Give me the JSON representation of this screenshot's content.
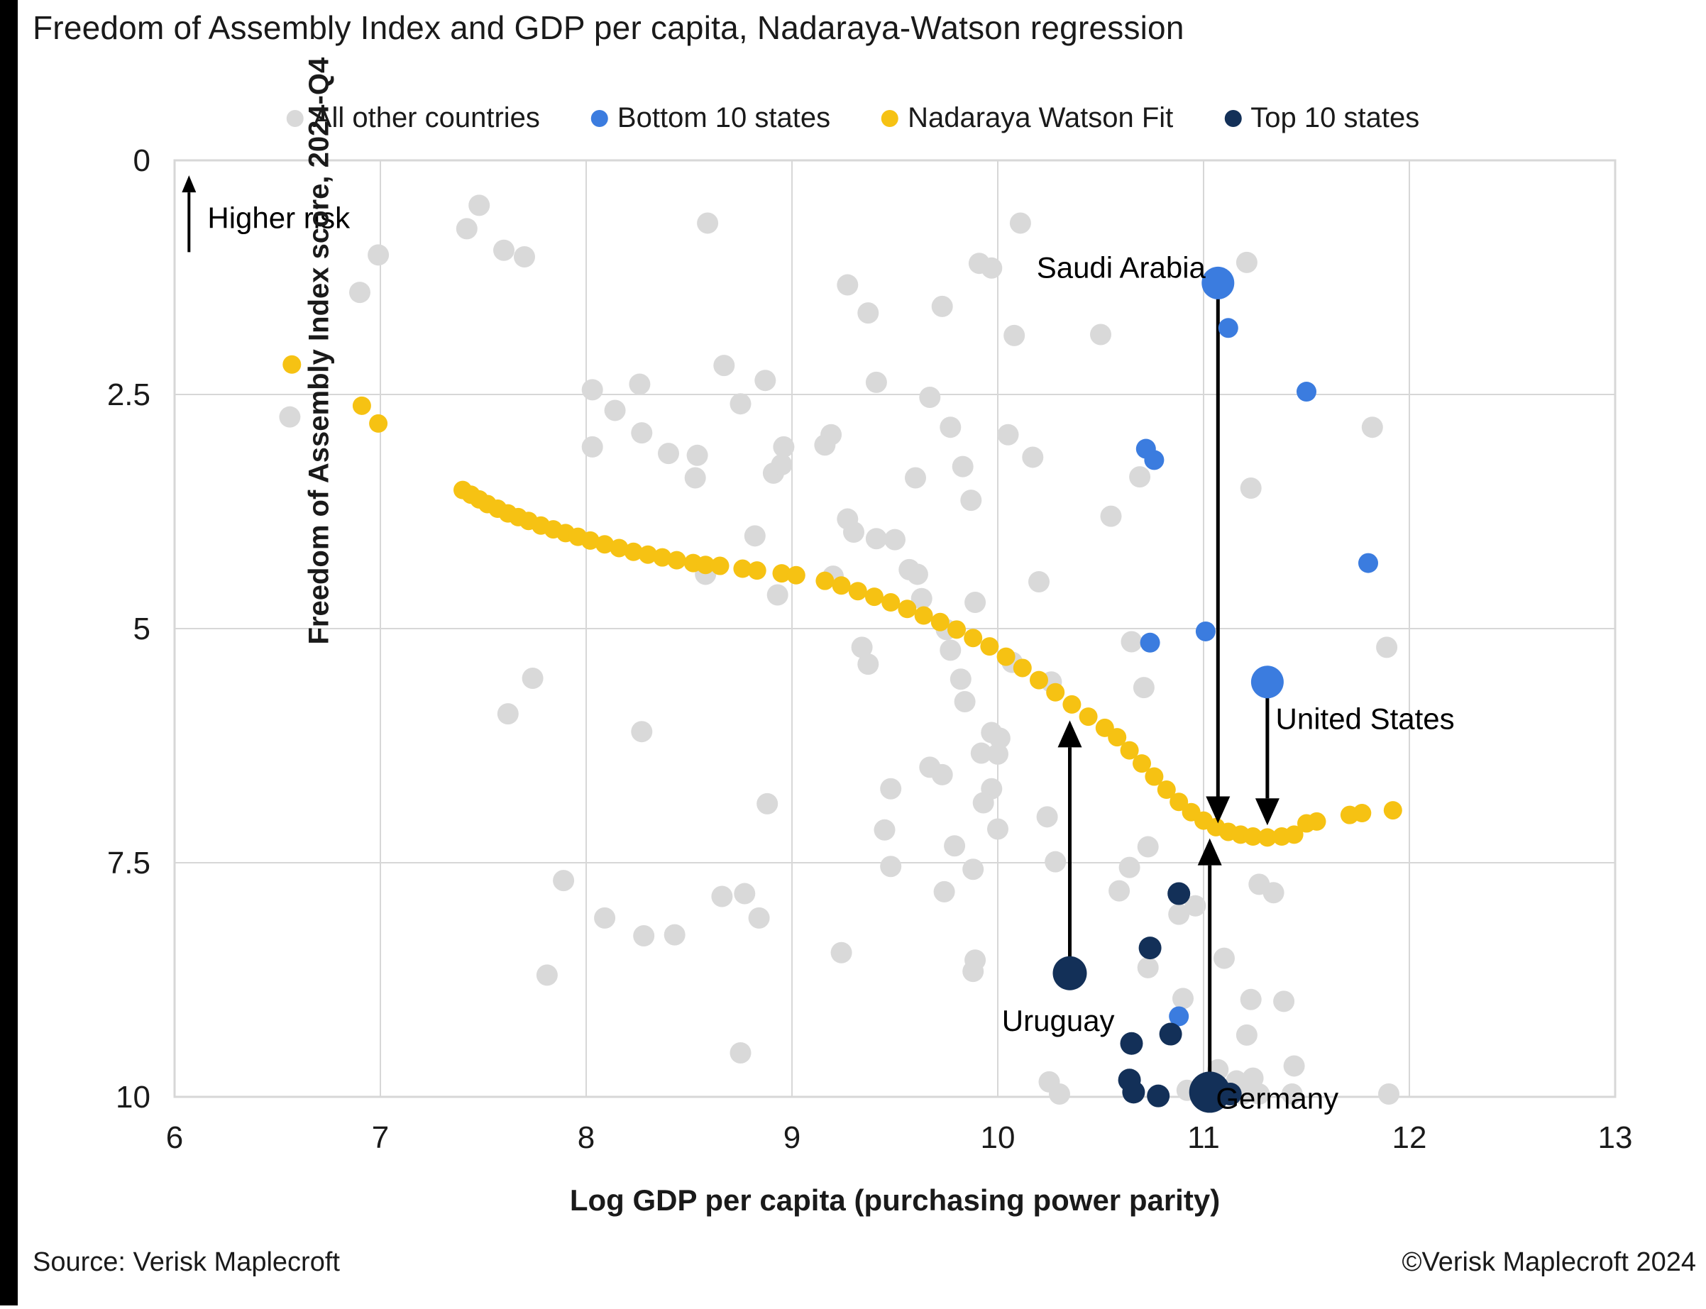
{
  "title": "Freedom of Assembly Index and GDP per capita, Nadaraya-Watson regression",
  "legend": [
    {
      "label": "All other countries",
      "color_key": "gray"
    },
    {
      "label": "Bottom 10 states",
      "color_key": "blue"
    },
    {
      "label": "Nadaraya Watson Fit",
      "color_key": "yellow"
    },
    {
      "label": "Top 10 states",
      "color_key": "navy"
    }
  ],
  "colors": {
    "background": "#FFFFFF",
    "text": "#1A1A1A",
    "grid": "#D7D7D7",
    "gray": "#D9D9D9",
    "blue": "#3B7CDF",
    "yellow": "#F6C213",
    "navy": "#133058",
    "arrow": "#000000"
  },
  "footer": {
    "source": "Source: Verisk Maplecroft",
    "copyright": "©Verisk Maplecroft 2024"
  },
  "chart_data": {
    "type": "scatter",
    "xlabel": "Log GDP per capita (purchasing power parity)",
    "ylabel": "Freedom of Assembly Index score, 2024-Q4",
    "xlim": [
      6,
      13
    ],
    "ylim": [
      0,
      10
    ],
    "y_axis_inverted_note": "0 (higher risk) at top, 10 at bottom",
    "grid": true,
    "legend_position": "top",
    "x_ticks": [
      "6",
      "7",
      "8",
      "9",
      "10",
      "11",
      "12",
      "13"
    ],
    "x_tick_values": [
      6,
      7,
      8,
      9,
      10,
      11,
      12,
      13
    ],
    "y_ticks": [
      "0",
      "2.5",
      "5",
      "7.5",
      "10"
    ],
    "y_tick_values": [
      0,
      2.5,
      5,
      7.5,
      10
    ],
    "series": [
      {
        "name": "All other countries",
        "color_key": "gray",
        "marker_radius": 15,
        "points": [
          [
            6.56,
            2.74
          ],
          [
            6.9,
            1.41
          ],
          [
            6.99,
            1.01
          ],
          [
            7.42,
            0.73
          ],
          [
            7.48,
            0.48
          ],
          [
            7.6,
            0.96
          ],
          [
            7.7,
            1.03
          ],
          [
            8.59,
            0.67
          ],
          [
            9.27,
            1.33
          ],
          [
            9.37,
            1.63
          ],
          [
            9.73,
            1.56
          ],
          [
            9.91,
            1.1
          ],
          [
            9.97,
            1.15
          ],
          [
            10.08,
            1.87
          ],
          [
            10.11,
            0.67
          ],
          [
            10.5,
            1.86
          ],
          [
            11.21,
            1.09
          ],
          [
            8.03,
            2.45
          ],
          [
            8.26,
            2.39
          ],
          [
            8.14,
            2.67
          ],
          [
            8.27,
            2.91
          ],
          [
            8.4,
            3.13
          ],
          [
            8.03,
            3.06
          ],
          [
            8.67,
            2.19
          ],
          [
            8.75,
            2.6
          ],
          [
            8.87,
            2.35
          ],
          [
            9.41,
            2.37
          ],
          [
            9.67,
            2.53
          ],
          [
            9.77,
            2.85
          ],
          [
            10.05,
            2.93
          ],
          [
            11.82,
            2.85
          ],
          [
            8.54,
            3.15
          ],
          [
            8.53,
            3.39
          ],
          [
            8.91,
            3.34
          ],
          [
            8.95,
            3.25
          ],
          [
            8.96,
            3.06
          ],
          [
            9.16,
            3.04
          ],
          [
            9.19,
            2.93
          ],
          [
            9.6,
            3.39
          ],
          [
            9.83,
            3.27
          ],
          [
            9.87,
            3.63
          ],
          [
            10.17,
            3.17
          ],
          [
            10.69,
            3.38
          ],
          [
            10.55,
            3.8
          ],
          [
            11.23,
            3.5
          ],
          [
            8.58,
            4.42
          ],
          [
            8.82,
            4.01
          ],
          [
            8.93,
            4.64
          ],
          [
            9.2,
            4.44
          ],
          [
            9.27,
            3.83
          ],
          [
            9.3,
            3.97
          ],
          [
            9.41,
            4.04
          ],
          [
            9.5,
            4.05
          ],
          [
            9.57,
            4.37
          ],
          [
            9.61,
            4.42
          ],
          [
            9.63,
            4.68
          ],
          [
            10.2,
            4.5
          ],
          [
            9.34,
            5.2
          ],
          [
            9.37,
            5.38
          ],
          [
            9.75,
            5.01
          ],
          [
            9.77,
            5.23
          ],
          [
            9.82,
            5.54
          ],
          [
            9.84,
            5.78
          ],
          [
            9.89,
            4.72
          ],
          [
            10.07,
            5.36
          ],
          [
            10.26,
            5.57
          ],
          [
            10.65,
            5.14
          ],
          [
            10.71,
            5.63
          ],
          [
            11.89,
            5.2
          ],
          [
            9.97,
            6.11
          ],
          [
            10.01,
            6.17
          ],
          [
            8.88,
            6.87
          ],
          [
            9.48,
            6.71
          ],
          [
            9.67,
            6.48
          ],
          [
            9.73,
            6.56
          ],
          [
            9.92,
            6.33
          ],
          [
            10.0,
            6.34
          ],
          [
            9.97,
            6.71
          ],
          [
            9.93,
            6.86
          ],
          [
            9.45,
            7.15
          ],
          [
            10.0,
            7.14
          ],
          [
            9.79,
            7.32
          ],
          [
            9.48,
            7.54
          ],
          [
            9.88,
            7.57
          ],
          [
            9.74,
            7.81
          ],
          [
            8.66,
            7.86
          ],
          [
            8.77,
            7.83
          ],
          [
            8.84,
            8.09
          ],
          [
            10.24,
            7.01
          ],
          [
            10.28,
            7.49
          ],
          [
            10.59,
            7.8
          ],
          [
            10.64,
            7.55
          ],
          [
            10.73,
            7.33
          ],
          [
            11.27,
            7.73
          ],
          [
            11.34,
            7.82
          ],
          [
            7.74,
            5.53
          ],
          [
            7.62,
            5.91
          ],
          [
            8.27,
            6.1
          ],
          [
            7.89,
            7.69
          ],
          [
            8.09,
            8.09
          ],
          [
            8.28,
            8.28
          ],
          [
            8.43,
            8.27
          ],
          [
            7.81,
            8.7
          ],
          [
            9.24,
            8.46
          ],
          [
            8.75,
            9.53
          ],
          [
            9.89,
            8.54
          ],
          [
            9.88,
            8.66
          ],
          [
            10.88,
            8.05
          ],
          [
            10.96,
            7.96
          ],
          [
            10.73,
            8.62
          ],
          [
            11.1,
            8.52
          ],
          [
            10.9,
            8.95
          ],
          [
            11.23,
            8.96
          ],
          [
            11.39,
            8.98
          ],
          [
            11.21,
            9.34
          ],
          [
            10.25,
            9.84
          ],
          [
            10.3,
            9.97
          ],
          [
            10.92,
            9.93
          ],
          [
            11.07,
            9.71
          ],
          [
            11.16,
            9.83
          ],
          [
            11.24,
            9.8
          ],
          [
            11.19,
            9.97
          ],
          [
            11.27,
            9.97
          ],
          [
            11.43,
            9.97
          ],
          [
            11.44,
            9.67
          ],
          [
            11.9,
            9.97
          ]
        ]
      },
      {
        "name": "Nadaraya Watson Fit",
        "color_key": "yellow",
        "marker_radius": 13,
        "points": [
          [
            6.57,
            2.18
          ],
          [
            6.91,
            2.62
          ],
          [
            6.99,
            2.81
          ],
          [
            7.4,
            3.52
          ],
          [
            7.44,
            3.57
          ],
          [
            7.48,
            3.62
          ],
          [
            7.52,
            3.67
          ],
          [
            7.57,
            3.72
          ],
          [
            7.62,
            3.77
          ],
          [
            7.67,
            3.81
          ],
          [
            7.72,
            3.85
          ],
          [
            7.78,
            3.9
          ],
          [
            7.84,
            3.94
          ],
          [
            7.9,
            3.98
          ],
          [
            7.96,
            4.02
          ],
          [
            8.02,
            4.06
          ],
          [
            8.09,
            4.1
          ],
          [
            8.16,
            4.14
          ],
          [
            8.23,
            4.18
          ],
          [
            8.3,
            4.21
          ],
          [
            8.37,
            4.24
          ],
          [
            8.44,
            4.27
          ],
          [
            8.52,
            4.3
          ],
          [
            8.58,
            4.32
          ],
          [
            8.65,
            4.33
          ],
          [
            8.76,
            4.36
          ],
          [
            8.83,
            4.38
          ],
          [
            8.95,
            4.41
          ],
          [
            9.02,
            4.43
          ],
          [
            9.16,
            4.49
          ],
          [
            9.24,
            4.54
          ],
          [
            9.32,
            4.6
          ],
          [
            9.4,
            4.66
          ],
          [
            9.48,
            4.72
          ],
          [
            9.56,
            4.79
          ],
          [
            9.64,
            4.86
          ],
          [
            9.72,
            4.93
          ],
          [
            9.8,
            5.01
          ],
          [
            9.88,
            5.1
          ],
          [
            9.96,
            5.19
          ],
          [
            10.04,
            5.3
          ],
          [
            10.12,
            5.42
          ],
          [
            10.2,
            5.55
          ],
          [
            10.28,
            5.68
          ],
          [
            10.36,
            5.81
          ],
          [
            10.44,
            5.94
          ],
          [
            10.52,
            6.06
          ],
          [
            10.58,
            6.16
          ],
          [
            10.64,
            6.3
          ],
          [
            10.7,
            6.44
          ],
          [
            10.76,
            6.58
          ],
          [
            10.82,
            6.72
          ],
          [
            10.88,
            6.85
          ],
          [
            10.94,
            6.96
          ],
          [
            11.0,
            7.05
          ],
          [
            11.06,
            7.12
          ],
          [
            11.12,
            7.17
          ],
          [
            11.18,
            7.2
          ],
          [
            11.24,
            7.22
          ],
          [
            11.31,
            7.23
          ],
          [
            11.38,
            7.22
          ],
          [
            11.44,
            7.2
          ],
          [
            11.5,
            7.08
          ],
          [
            11.55,
            7.06
          ],
          [
            11.71,
            6.99
          ],
          [
            11.77,
            6.97
          ],
          [
            11.92,
            6.94
          ]
        ]
      },
      {
        "name": "Bottom 10 states",
        "color_key": "blue",
        "marker_radius": 14,
        "points": [
          [
            11.07,
            1.31,
            23
          ],
          [
            11.12,
            1.79
          ],
          [
            11.5,
            2.47
          ],
          [
            10.72,
            3.08
          ],
          [
            10.76,
            3.2
          ],
          [
            11.8,
            4.3
          ],
          [
            10.74,
            5.15
          ],
          [
            11.01,
            5.03
          ],
          [
            11.31,
            5.57,
            23
          ],
          [
            10.88,
            9.14
          ]
        ]
      },
      {
        "name": "Top 10 states",
        "color_key": "navy",
        "marker_radius": 16,
        "points": [
          [
            10.35,
            8.68,
            24
          ],
          [
            11.03,
            9.95,
            29
          ],
          [
            10.88,
            7.83
          ],
          [
            10.74,
            8.41
          ],
          [
            10.65,
            9.43
          ],
          [
            10.84,
            9.33
          ],
          [
            10.64,
            9.82
          ],
          [
            10.66,
            9.95
          ],
          [
            10.78,
            9.99
          ],
          [
            11.13,
            9.97
          ]
        ]
      }
    ],
    "arrows": [
      {
        "x": 11.07,
        "y_from": 1.31,
        "y_tip": 7.08,
        "direction": "down",
        "for": "Saudi Arabia"
      },
      {
        "x": 11.31,
        "y_from": 5.57,
        "y_tip": 7.1,
        "direction": "down",
        "for": "United States"
      },
      {
        "x": 10.35,
        "y_from": 8.68,
        "y_tip": 5.98,
        "direction": "up",
        "for": "Uruguay"
      },
      {
        "x": 11.03,
        "y_from": 9.95,
        "y_tip": 7.24,
        "direction": "up",
        "for": "Germany"
      }
    ],
    "point_labels": [
      {
        "text": "Saudi Arabia",
        "x": 11.01,
        "y": 1.14,
        "align": "end"
      },
      {
        "text": "United States",
        "x": 11.35,
        "y": 5.96,
        "align": "start"
      },
      {
        "text": "Uruguay",
        "x": 10.02,
        "y": 9.18,
        "align": "start"
      },
      {
        "text": "Germany",
        "x": 11.06,
        "y": 10.01,
        "align": "start"
      }
    ],
    "risk_annotation": {
      "text": "Higher risk",
      "text_x": 6.16,
      "text_y": 0.61,
      "arrow_x": 6.07,
      "arrow_y_from": 0.98,
      "arrow_y_tip": 0.16
    }
  }
}
